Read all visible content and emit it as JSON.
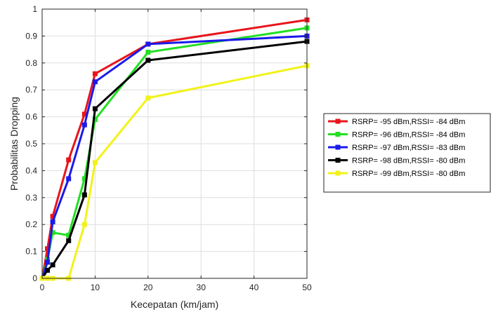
{
  "chart_data": {
    "type": "line",
    "xlabel": "Kecepatan (km/jam)",
    "ylabel": "Probabilitas Dropping",
    "xlim": [
      0,
      50
    ],
    "ylim": [
      0,
      1
    ],
    "xticks": [
      0,
      10,
      20,
      30,
      40,
      50
    ],
    "yticks": [
      0,
      0.1,
      0.2,
      0.3,
      0.4,
      0.5,
      0.6,
      0.7,
      0.8,
      0.9,
      1
    ],
    "grid": true,
    "legend_position": "right",
    "series": [
      {
        "name": "RSRP= -95 dBm,RSSI= -84 dBm",
        "color": "#e8151b",
        "x": [
          0,
          1,
          2,
          5,
          8,
          10,
          20,
          50
        ],
        "y": [
          0,
          0.11,
          0.23,
          0.44,
          0.61,
          0.76,
          0.87,
          0.96
        ]
      },
      {
        "name": "RSRP= -96 dBm,RSSI= -84 dBm",
        "color": "#22e022",
        "x": [
          0,
          1,
          2,
          5,
          8,
          10,
          20,
          50
        ],
        "y": [
          0,
          0.07,
          0.17,
          0.16,
          0.37,
          0.59,
          0.84,
          0.93
        ]
      },
      {
        "name": "RSRP= -97 dBm,RSSI= -83 dBm",
        "color": "#1a1aea",
        "x": [
          0,
          1,
          2,
          5,
          8,
          10,
          20,
          50
        ],
        "y": [
          0,
          0.06,
          0.21,
          0.37,
          0.57,
          0.73,
          0.87,
          0.9
        ]
      },
      {
        "name": "RSRP= -98 dBm,RSSI= -80 dBm",
        "color": "#000000",
        "x": [
          0,
          1,
          2,
          5,
          8,
          10,
          20,
          50
        ],
        "y": [
          0,
          0.03,
          0.05,
          0.14,
          0.31,
          0.63,
          0.81,
          0.88
        ]
      },
      {
        "name": "RSRP= -99 dBm,RSSI= -80 dBm",
        "color": "#f2f21a",
        "x": [
          0,
          1,
          2,
          5,
          8,
          10,
          20,
          50
        ],
        "y": [
          0,
          0,
          0,
          0,
          0.2,
          0.43,
          0.67,
          0.79
        ]
      }
    ]
  }
}
